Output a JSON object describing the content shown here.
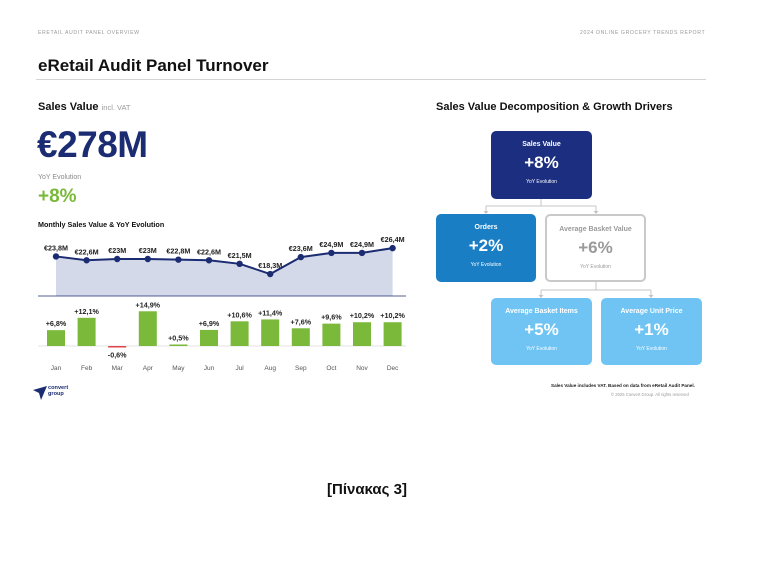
{
  "header": {
    "left": "ERETAIL AUDIT PANEL OVERVIEW",
    "right": "2024 ONLINE GROCERY TRENDS REPORT"
  },
  "page_title": "eRetail Audit Panel Turnover",
  "sales_value": {
    "label": "Sales Value",
    "sublabel": "incl. VAT",
    "amount": "€278M",
    "yoy_label": "YoY Evolution",
    "yoy_value": "+8%"
  },
  "chart_title": "Monthly Sales Value & YoY Evolution",
  "chart_data": [
    {
      "type": "area",
      "categories": [
        "Jan",
        "Feb",
        "Mar",
        "Apr",
        "May",
        "Jun",
        "Jul",
        "Aug",
        "Sep",
        "Oct",
        "Nov",
        "Dec"
      ],
      "values": [
        23.8,
        22.6,
        23.0,
        23.0,
        22.8,
        22.6,
        21.5,
        18.3,
        23.6,
        24.9,
        24.9,
        26.4
      ],
      "data_labels": [
        "€23,8M",
        "€22,6M",
        "€23M",
        "€23M",
        "€22,8M",
        "€22,6M",
        "€21,5M",
        "€18,3M",
        "€23,6M",
        "€24,9M",
        "€24,9M",
        "€26,4M"
      ],
      "color": "#1b2c73",
      "fill": "#d3d9e8"
    },
    {
      "type": "bar",
      "categories": [
        "Jan",
        "Feb",
        "Mar",
        "Apr",
        "May",
        "Jun",
        "Jul",
        "Aug",
        "Sep",
        "Oct",
        "Nov",
        "Dec"
      ],
      "values": [
        6.8,
        12.1,
        -0.6,
        14.9,
        0.5,
        6.9,
        10.6,
        11.4,
        7.6,
        9.6,
        10.2,
        10.2
      ],
      "data_labels": [
        "+6,8%",
        "+12,1%",
        "-0,6%",
        "+14,9%",
        "+0,5%",
        "+6,9%",
        "+10,6%",
        "+11,4%",
        "+7,6%",
        "+9,6%",
        "+10,2%",
        "+10,2%"
      ],
      "positive_color": "#7ab93a",
      "negative_color": "#e0434a"
    }
  ],
  "decomposition": {
    "title": "Sales Value Decomposition & Growth Drivers",
    "sales": {
      "title": "Sales Value",
      "value": "+8%",
      "sub": "YoY Evolution"
    },
    "orders": {
      "title": "Orders",
      "value": "+2%",
      "sub": "YoY Evolution"
    },
    "basket": {
      "title": "Average Basket Value",
      "value": "+6%",
      "sub": "YoY Evolution"
    },
    "items": {
      "title": "Average Basket Items",
      "value": "+5%",
      "sub": "YoY Evolution"
    },
    "unit": {
      "title": "Average Unit Price",
      "value": "+1%",
      "sub": "YoY Evolution"
    }
  },
  "footnote": "Sales Value includes VAT. Based on data from eRetail Audit Panel.",
  "copyright": "© 2025 Convert Group. All rights reserved",
  "logo": {
    "line1": "convert",
    "line2": "group"
  },
  "caption": "[Πίνακας 3]"
}
